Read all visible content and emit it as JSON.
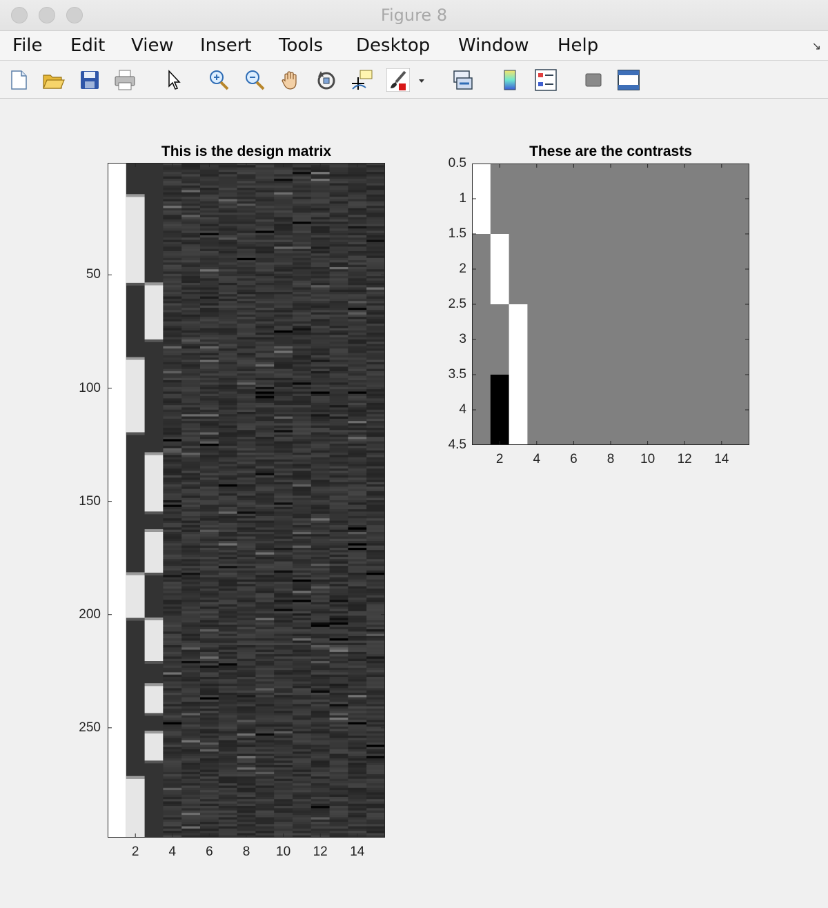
{
  "window": {
    "title": "Figure 8"
  },
  "menu": {
    "items": [
      "File",
      "Edit",
      "View",
      "Insert",
      "Tools",
      "Desktop",
      "Window",
      "Help"
    ]
  },
  "toolbar": {
    "icons": [
      "new-figure-icon",
      "open-file-icon",
      "save-icon",
      "print-icon",
      "edit-plot-arrow-icon",
      "zoom-in-icon",
      "zoom-out-icon",
      "pan-hand-icon",
      "rotate-3d-icon",
      "data-cursor-icon",
      "brush-icon",
      "brush-dropdown-icon",
      "link-plot-icon",
      "insert-colorbar-icon",
      "insert-legend-icon",
      "hide-plot-tools-icon",
      "show-plot-tools-icon"
    ]
  },
  "chart_data": [
    {
      "type": "heatmap",
      "title": "This is the design matrix",
      "colormap": "gray",
      "xlim": [
        0.5,
        15.5
      ],
      "ylim": [
        0.5,
        298.5
      ],
      "y_reversed": true,
      "xticks": [
        2,
        4,
        6,
        8,
        10,
        12,
        14
      ],
      "yticks": [
        50,
        100,
        150,
        200,
        250
      ],
      "rows": 298,
      "columns": 15,
      "column_1": "constant (white)",
      "column_2_on_blocks": [
        [
          16,
          53
        ],
        [
          88,
          119
        ],
        [
          183,
          201
        ],
        [
          273,
          298
        ]
      ],
      "column_3_on_blocks": [
        [
          55,
          78
        ],
        [
          130,
          154
        ],
        [
          164,
          181
        ],
        [
          203,
          220
        ],
        [
          232,
          243
        ],
        [
          253,
          264
        ]
      ],
      "columns_4_to_15": "dark gray noise regressors"
    },
    {
      "type": "heatmap",
      "title": "These are the contrasts",
      "colormap": "gray",
      "xlim": [
        0.5,
        15.5
      ],
      "ylim": [
        0.5,
        4.5
      ],
      "y_reversed": true,
      "xticks": [
        2,
        4,
        6,
        8,
        10,
        12,
        14
      ],
      "yticks": [
        0.5,
        1,
        1.5,
        2,
        2.5,
        3,
        3.5,
        4,
        4.5
      ],
      "matrix": [
        [
          1,
          0,
          0,
          0,
          0,
          0,
          0,
          0,
          0,
          0,
          0,
          0,
          0,
          0,
          0
        ],
        [
          0,
          1,
          0,
          0,
          0,
          0,
          0,
          0,
          0,
          0,
          0,
          0,
          0,
          0,
          0
        ],
        [
          0,
          0,
          1,
          0,
          0,
          0,
          0,
          0,
          0,
          0,
          0,
          0,
          0,
          0,
          0
        ],
        [
          0,
          -1,
          1,
          0,
          0,
          0,
          0,
          0,
          0,
          0,
          0,
          0,
          0,
          0,
          0
        ]
      ]
    }
  ]
}
